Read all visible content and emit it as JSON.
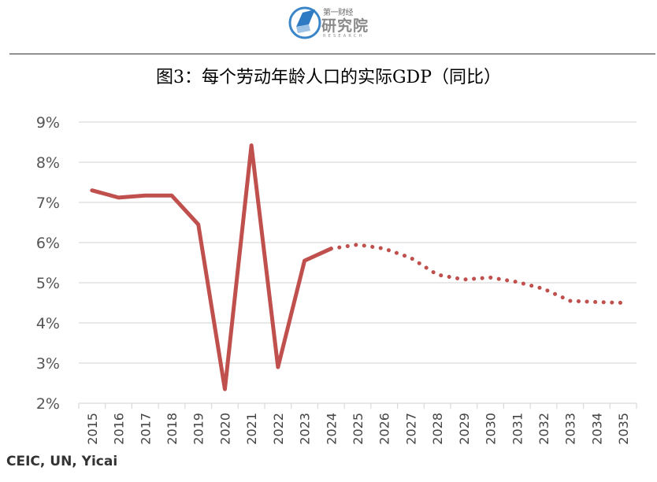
{
  "header": {
    "logo_top": "第一财经",
    "logo_main": "研究院",
    "logo_sub": "RESEARCH"
  },
  "title": "图3：每个劳动年龄人口的实际GDP（同比）",
  "source": "CEIC, UN, Yicai",
  "colors": {
    "line": "#c0504d",
    "grid": "#d9d9d9"
  },
  "chart_data": {
    "type": "line",
    "title": "图3：每个劳动年龄人口的实际GDP（同比）",
    "xlabel": "",
    "ylabel": "",
    "ylim": [
      2,
      9
    ],
    "yticks": [
      "2%",
      "3%",
      "4%",
      "5%",
      "6%",
      "7%",
      "8%",
      "9%"
    ],
    "categories": [
      "2015",
      "2016",
      "2017",
      "2018",
      "2019",
      "2020",
      "2021",
      "2022",
      "2023",
      "2024",
      "2025",
      "2026",
      "2027",
      "2028",
      "2029",
      "2030",
      "2031",
      "2032",
      "2033",
      "2034",
      "2035"
    ],
    "series": [
      {
        "style": "solid",
        "x": [
          "2015",
          "2016",
          "2017",
          "2018",
          "2019",
          "2020",
          "2021",
          "2022",
          "2023",
          "2024"
        ],
        "values": [
          7.3,
          7.12,
          7.17,
          7.17,
          6.45,
          2.35,
          8.42,
          2.9,
          5.55,
          5.85
        ]
      },
      {
        "style": "dotted",
        "x": [
          "2024",
          "2025",
          "2026",
          "2027",
          "2028",
          "2029",
          "2030",
          "2031",
          "2032",
          "2033",
          "2034",
          "2035"
        ],
        "values": [
          5.85,
          5.95,
          5.85,
          5.62,
          5.2,
          5.08,
          5.13,
          5.02,
          4.85,
          4.55,
          4.52,
          4.5
        ]
      }
    ],
    "grid": true,
    "legend": "none"
  }
}
